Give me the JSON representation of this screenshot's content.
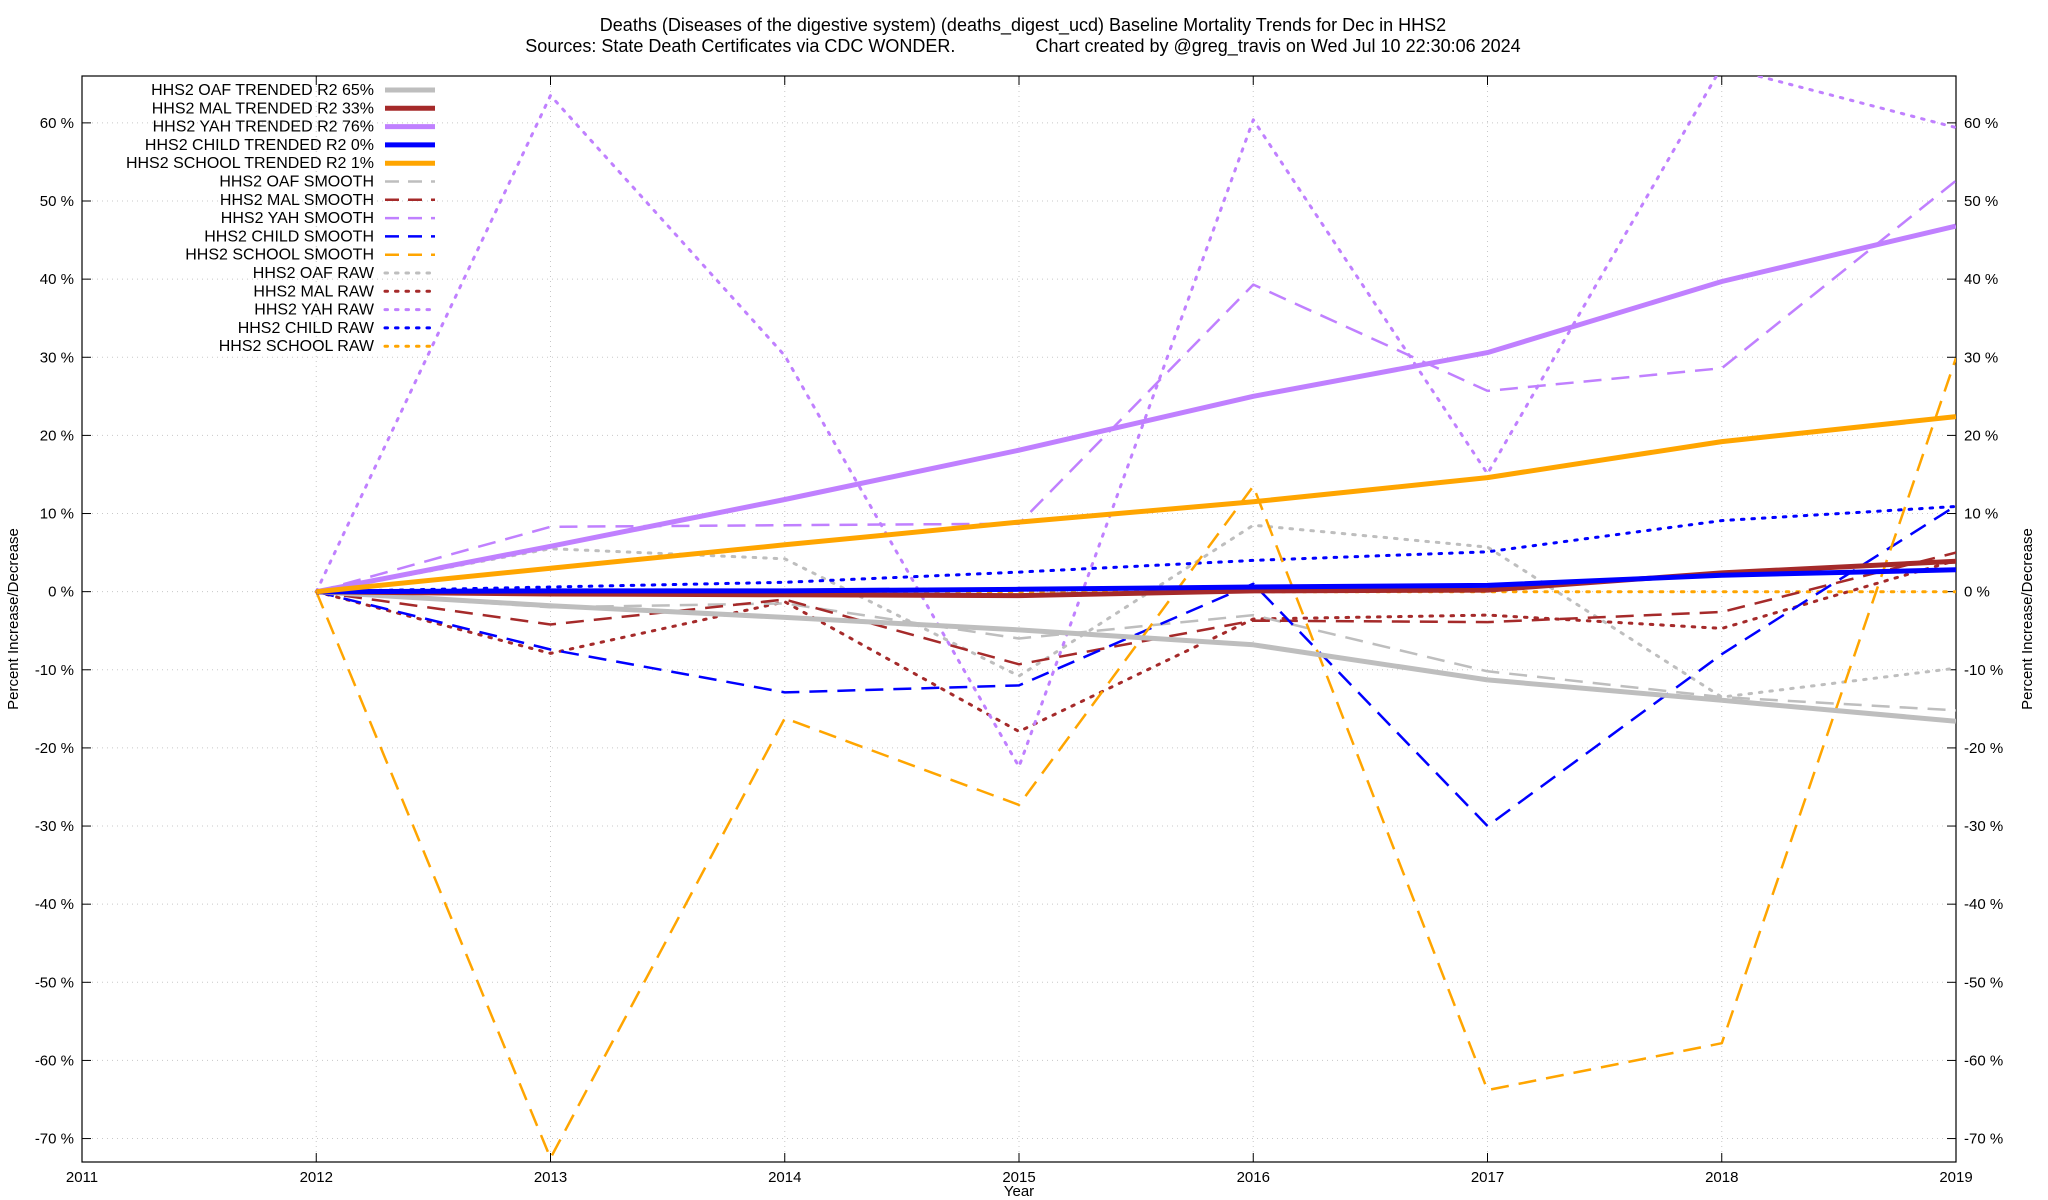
{
  "chart_data": {
    "type": "line",
    "title_line1": "Deaths (Diseases of the digestive system) (deaths_digest_ucd)  Baseline Mortality Trends for Dec in HHS2",
    "title_line2": "Sources: State Death Certificates via CDC WONDER.                Chart created by @greg_travis on Wed Jul 10 22:30:06 2024",
    "xlabel": "Year",
    "ylabel": "Percent Increase/Decrease",
    "ylabel_right": "Percent Increase/Decrease",
    "xlim": [
      2011,
      2019
    ],
    "ylim": [
      -73,
      66
    ],
    "x_ticks": [
      2011,
      2012,
      2013,
      2014,
      2015,
      2016,
      2017,
      2018,
      2019
    ],
    "x_tick_labels": [
      "2011",
      "2012",
      "2013",
      "2014",
      "2015",
      "2016",
      "2017",
      "2018",
      "2019"
    ],
    "y_ticks": [
      -70,
      -60,
      -50,
      -40,
      -30,
      -20,
      -10,
      0,
      10,
      20,
      30,
      40,
      50,
      60
    ],
    "y_tick_labels": [
      "-70 %",
      "-60 %",
      "-50 %",
      "-40 %",
      "-30 %",
      "-20 %",
      "-10 %",
      "0 %",
      "10 %",
      "20 %",
      "30 %",
      "40 %",
      "50 %",
      "60 %"
    ],
    "grid": true,
    "legend_position": "top-left",
    "x": [
      2012,
      2013,
      2014,
      2015,
      2016,
      2017,
      2018,
      2019
    ],
    "series": [
      {
        "name": "HHS2 OAF TRENDED R2  65%",
        "color": "#bebebe",
        "style": "solid",
        "width": 5,
        "values": [
          0,
          -1.8,
          -3.3,
          -4.9,
          -6.8,
          -11.3,
          -13.9,
          -16.6
        ]
      },
      {
        "name": "HHS2 MAL TRENDED R2  33%",
        "color": "#a52a2a",
        "style": "solid",
        "width": 5,
        "values": [
          0,
          -0.3,
          -0.4,
          -0.5,
          0.1,
          0.2,
          2.4,
          3.9
        ]
      },
      {
        "name": "HHS2 YAH TRENDED R2  76%",
        "color": "#c080ff",
        "style": "solid",
        "width": 5,
        "values": [
          0,
          5.8,
          11.8,
          18.1,
          25.0,
          30.6,
          39.7,
          46.8
        ]
      },
      {
        "name": "HHS2 CHILD TRENDED R2   0%",
        "color": "#0000ff",
        "style": "solid",
        "width": 5,
        "values": [
          0,
          0.1,
          0.1,
          0.3,
          0.6,
          0.8,
          2.1,
          2.8
        ]
      },
      {
        "name": "HHS2 SCHOOL TRENDED R2   1%",
        "color": "#ffa500",
        "style": "solid",
        "width": 5,
        "values": [
          0,
          3.0,
          6.0,
          8.9,
          11.5,
          14.6,
          19.2,
          22.4
        ]
      },
      {
        "name": "HHS2 OAF SMOOTH",
        "color": "#bebebe",
        "style": "dash",
        "width": 2.5,
        "values": [
          0,
          -2.0,
          -1.5,
          -6.0,
          -3.0,
          -10.2,
          -13.5,
          -15.2
        ]
      },
      {
        "name": "HHS2 MAL SMOOTH",
        "color": "#a52a2a",
        "style": "dash",
        "width": 2.5,
        "values": [
          0,
          -4.2,
          -1.0,
          -9.3,
          -3.7,
          -3.9,
          -2.6,
          5.0
        ]
      },
      {
        "name": "HHS2 YAH SMOOTH",
        "color": "#c080ff",
        "style": "dash",
        "width": 2.5,
        "values": [
          0,
          8.3,
          8.5,
          8.7,
          39.3,
          25.7,
          28.6,
          52.6
        ]
      },
      {
        "name": "HHS2 CHILD SMOOTH",
        "color": "#0000ff",
        "style": "dash",
        "width": 2.5,
        "values": [
          0,
          -7.4,
          -12.9,
          -12.0,
          1.0,
          -30.0,
          -8.0,
          11.0
        ]
      },
      {
        "name": "HHS2 SCHOOL SMOOTH",
        "color": "#ffa500",
        "style": "dash",
        "width": 2.5,
        "values": [
          0,
          -72.5,
          -16.2,
          -27.3,
          13.5,
          -63.8,
          -57.8,
          29.9
        ]
      },
      {
        "name": "HHS2 OAF RAW",
        "color": "#bebebe",
        "style": "dot",
        "width": 3,
        "values": [
          0,
          5.5,
          4.2,
          -10.8,
          8.5,
          5.7,
          -13.5,
          -9.8
        ]
      },
      {
        "name": "HHS2 MAL RAW",
        "color": "#a52a2a",
        "style": "dot",
        "width": 3,
        "values": [
          0,
          -7.9,
          -1.3,
          -17.9,
          -3.5,
          -3.0,
          -4.7,
          4.0
        ]
      },
      {
        "name": "HHS2 YAH RAW",
        "color": "#c080ff",
        "style": "dot",
        "width": 3,
        "values": [
          0,
          63.5,
          30.2,
          -22.4,
          60.4,
          15.1,
          67.2,
          59.4
        ]
      },
      {
        "name": "HHS2 CHILD RAW",
        "color": "#0000ff",
        "style": "dot",
        "width": 3,
        "values": [
          0,
          0.6,
          1.2,
          2.5,
          4.0,
          5.1,
          9.1,
          10.9
        ]
      },
      {
        "name": "HHS2 SCHOOL RAW",
        "color": "#ffa500",
        "style": "dot",
        "width": 3,
        "values": [
          0,
          0,
          0,
          0,
          0,
          0,
          0,
          0
        ]
      }
    ]
  }
}
